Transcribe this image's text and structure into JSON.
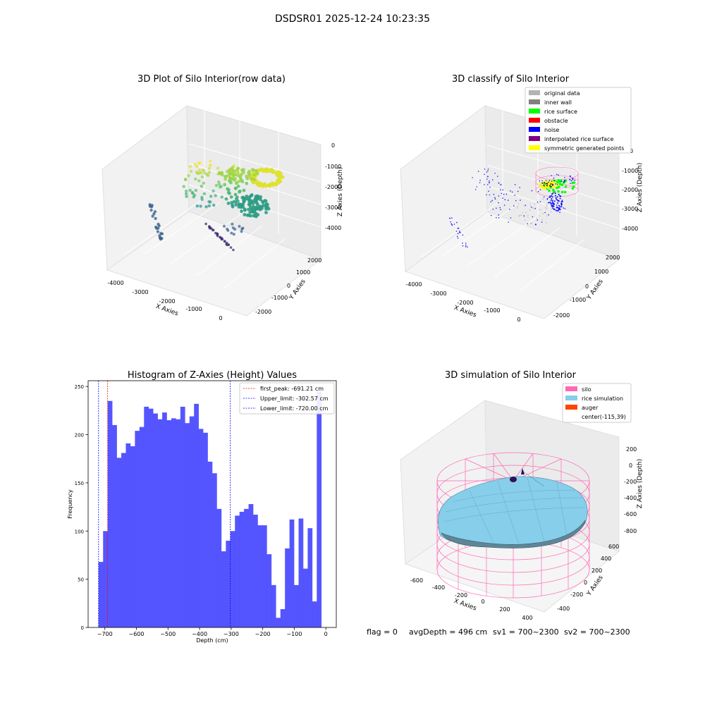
{
  "figure": {
    "suptitle": "DSDSR01 2025-12-24 10:23:35",
    "footer": {
      "flag": "flag = 0",
      "avg_depth": "avgDepth = 496 cm",
      "sv1": "sv1 = 700~2300",
      "sv2": "sv2 = 700~2300"
    }
  },
  "chart_data": [
    {
      "type": "scatter",
      "title": "3D Plot of Silo Interior(row data)",
      "xlabel": "X Axies",
      "ylabel": "Y Axies",
      "zlabel": "Z Axies (Depth)",
      "x_ticks": [
        "-4000",
        "-3000",
        "-2000",
        "-1000",
        "0"
      ],
      "y_ticks": [
        "-2000",
        "-1000",
        "0",
        "1000",
        "2000"
      ],
      "z_ticks": [
        "0",
        "-1000",
        "-2000",
        "-3000",
        "-4000"
      ],
      "colormap": "viridis"
    },
    {
      "type": "scatter",
      "title": "3D classify of Silo Interior",
      "xlabel": "X Axies",
      "ylabel": "Y Axies",
      "zlabel": "Z Axies (Depth)",
      "x_ticks": [
        "-4000",
        "-3000",
        "-2000",
        "-1000",
        "0"
      ],
      "y_ticks": [
        "-2000",
        "-1000",
        "0",
        "1000",
        "2000"
      ],
      "z_ticks": [
        "0",
        "-1000",
        "-2000",
        "-3000",
        "-4000"
      ],
      "legend_position": "top-right",
      "legend": [
        {
          "label": "original data",
          "color": "#b3b3b3"
        },
        {
          "label": "inner wall",
          "color": "#808080"
        },
        {
          "label": "rice surface",
          "color": "#00ff00"
        },
        {
          "label": "obstacle",
          "color": "#ff0000"
        },
        {
          "label": "noise",
          "color": "#0000ff"
        },
        {
          "label": "interpolated rice surface",
          "color": "#800080"
        },
        {
          "label": "symmetric generated points",
          "color": "#ffff00"
        }
      ]
    },
    {
      "type": "bar",
      "title": "Histogram of Z-Axies (Height) Values",
      "xlabel": "Depth (cm)",
      "ylabel": "Frequency",
      "xlim": [
        -753,
        33
      ],
      "ylim": [
        0,
        256
      ],
      "x_ticks": [
        -700,
        -600,
        -500,
        -400,
        -300,
        -200,
        -100,
        0
      ],
      "y_ticks": [
        0,
        50,
        100,
        150,
        200,
        250
      ],
      "bar_color": "#4c4cff",
      "bin_start": -720,
      "bin_width": 14.4,
      "values": [
        68,
        100,
        235,
        210,
        176,
        181,
        191,
        188,
        204,
        208,
        229,
        227,
        222,
        216,
        223,
        215,
        217,
        216,
        229,
        212,
        219,
        232,
        206,
        202,
        172,
        160,
        123,
        79,
        90,
        100,
        116,
        120,
        123,
        128,
        117,
        106,
        106,
        76,
        44,
        10,
        19,
        82,
        112,
        44,
        113,
        61,
        103,
        27,
        245
      ],
      "vlines": [
        {
          "label": "first_peak: -691.21 cm",
          "value": -691.21,
          "color": "#ff0000"
        },
        {
          "label": "Upper_limit: -302.57 cm",
          "value": -302.57,
          "color": "#0000ff"
        },
        {
          "label": "Lower_limit: -720.00 cm",
          "value": -720.0,
          "color": "#0000ff"
        }
      ],
      "legend_position": "top-right"
    },
    {
      "type": "area",
      "title": "3D simulation of Silo Interior",
      "xlabel": "X Axies",
      "ylabel": "Y Axies",
      "zlabel": "Z Axies (Depth)",
      "x_ticks": [
        "-600",
        "-400",
        "-200",
        "0",
        "200",
        "400"
      ],
      "y_ticks": [
        "-400",
        "-200",
        "0",
        "200",
        "400",
        "600"
      ],
      "z_ticks": [
        "200",
        "0",
        "-200",
        "-400",
        "-600",
        "-800"
      ],
      "legend_position": "top-right",
      "legend": [
        {
          "label": "silo",
          "color": "#ff69b4"
        },
        {
          "label": "rice simulation",
          "color": "#87ceeb"
        },
        {
          "label": "auger",
          "color": "#ff4500"
        },
        {
          "label": "center(-115,39)",
          "color": "none"
        }
      ]
    }
  ]
}
